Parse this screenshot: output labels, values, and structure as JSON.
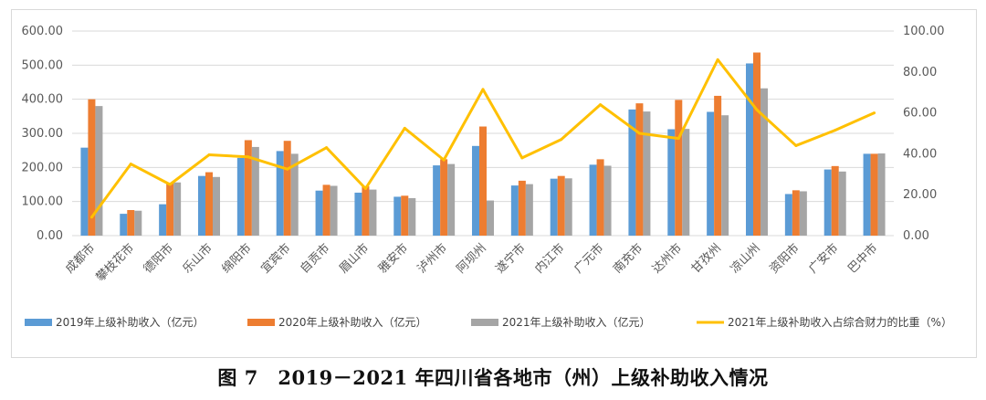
{
  "caption": "图 7　2019－2021 年四川省各地市（州）上级补助收入情况",
  "colors": {
    "s2019": "#5b9bd5",
    "s2020": "#ed7d31",
    "s2021": "#a5a5a5",
    "ratio": "#ffc000"
  },
  "chart_data": {
    "type": "bar",
    "title": "",
    "categories": [
      "成都市",
      "攀枝花市",
      "德阳市",
      "乐山市",
      "绵阳市",
      "宜宾市",
      "自贡市",
      "眉山市",
      "雅安市",
      "泸州市",
      "阿坝州",
      "遂宁市",
      "内江市",
      "广元市",
      "南充市",
      "达州市",
      "甘孜州",
      "凉山州",
      "资阳市",
      "广安市",
      "巴中市"
    ],
    "left_axis": {
      "ylim": [
        0,
        600
      ],
      "ticks": [
        "0.00",
        "100.00",
        "200.00",
        "300.00",
        "400.00",
        "500.00",
        "600.00"
      ]
    },
    "right_axis": {
      "ylim": [
        0,
        100
      ],
      "ticks": [
        "0.00",
        "20.00",
        "40.00",
        "60.00",
        "80.00",
        "100.00"
      ]
    },
    "grid": true,
    "legend_position": "bottom",
    "series": [
      {
        "name": "2019年上级补助收入（亿元）",
        "type": "bar",
        "axis": "left",
        "values": [
          258,
          64,
          92,
          175,
          228,
          248,
          132,
          126,
          114,
          206,
          263,
          147,
          167,
          208,
          370,
          312,
          363,
          505,
          122,
          194,
          240
        ]
      },
      {
        "name": "2020年上级补助收入（亿元）",
        "type": "bar",
        "axis": "left",
        "values": [
          400,
          75,
          155,
          186,
          280,
          278,
          149,
          145,
          117,
          224,
          320,
          161,
          175,
          224,
          388,
          398,
          410,
          537,
          133,
          204,
          240
        ]
      },
      {
        "name": "2021年上级补助收入（亿元）",
        "type": "bar",
        "axis": "left",
        "values": [
          380,
          73,
          156,
          172,
          260,
          240,
          146,
          135,
          110,
          210,
          103,
          151,
          168,
          205,
          364,
          313,
          353,
          432,
          130,
          188,
          241
        ]
      },
      {
        "name": "2021年上级补助收入占综合财力的比重（%）",
        "type": "line",
        "axis": "right",
        "values": [
          9,
          35,
          25,
          39.5,
          38.5,
          32.5,
          43,
          23,
          52.5,
          37,
          71.5,
          38,
          47,
          64,
          50,
          47.5,
          86,
          61.5,
          44,
          51.5,
          60
        ]
      }
    ]
  }
}
